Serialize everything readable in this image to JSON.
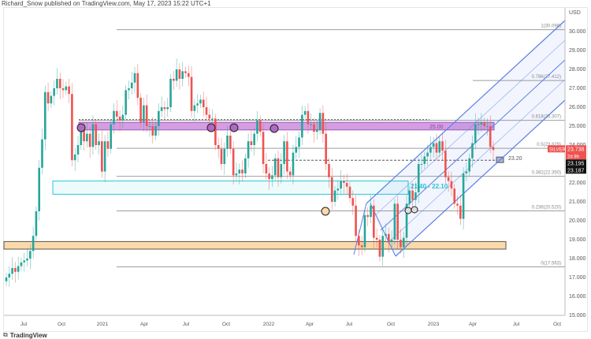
{
  "header": "Richard_Snow published on TradingView.com, May 17, 2023 15:22 UTC+1",
  "logo": "TradingView",
  "chart_data": {
    "type": "candlestick",
    "symbol": "SILVER",
    "currency": "USD",
    "ylim": [
      15,
      30.6
    ],
    "yticks": [
      "30.000",
      "29.000",
      "28.000",
      "27.000",
      "26.000",
      "25.000",
      "24.000",
      "22.000",
      "21.000",
      "20.000",
      "19.000",
      "18.000",
      "17.000",
      "16.000",
      "15.000"
    ],
    "ytick_values": [
      30,
      29,
      28,
      27,
      26,
      25,
      24,
      22,
      21,
      20,
      19,
      18,
      17,
      16,
      15
    ],
    "xticks": [
      "Jul",
      "Oct",
      "2021",
      "Apr",
      "Jul",
      "Oct",
      "2022",
      "Apr",
      "Jul",
      "Oct",
      "2023",
      "Apr",
      "Jul",
      "Oct"
    ],
    "interval": "weekly",
    "closes": [
      17.0,
      17.2,
      17.5,
      17.3,
      17.6,
      17.8,
      17.9,
      18.0,
      18.4,
      19.2,
      20.5,
      22.8,
      24.3,
      26.8,
      26.2,
      26.6,
      27.0,
      27.5,
      27.0,
      26.9,
      27.1,
      26.7,
      23.2,
      23.5,
      24.0,
      24.8,
      24.2,
      24.6,
      23.9,
      25.1,
      24.0,
      24.2,
      22.6,
      24.2,
      23.8,
      25.1,
      25.8,
      25.5,
      25.3,
      25.6,
      26.9,
      27.0,
      27.3,
      27.8,
      26.5,
      25.2,
      26.1,
      25.0,
      25.0,
      24.5,
      25.0,
      25.8,
      26.0,
      25.9,
      26.0,
      27.5,
      27.4,
      28.0,
      27.5,
      27.9,
      27.8,
      27.6,
      25.8,
      26.1,
      26.2,
      26.4,
      26.0,
      25.6,
      25.4,
      25.4,
      24.0,
      23.8,
      23.0,
      23.8,
      24.5,
      23.8,
      22.4,
      22.5,
      22.7,
      22.5,
      23.3,
      24.2,
      24.0,
      24.6,
      25.3,
      24.7,
      23.0,
      22.5,
      22.2,
      22.4,
      23.3,
      22.3,
      23.0,
      24.2,
      22.6,
      22.4,
      23.6,
      23.9,
      24.4,
      25.6,
      25.8,
      25.1,
      25.1,
      24.7,
      24.8,
      25.7,
      24.6,
      23.0,
      22.3,
      21.0,
      21.6,
      21.7,
      22.1,
      22.0,
      21.8,
      21.2,
      20.8,
      19.2,
      18.7,
      18.6,
      20.3,
      20.2,
      20.8,
      19.1,
      19.0,
      18.1,
      19.2,
      19.3,
      18.9,
      19.0,
      20.9,
      19.0,
      18.6,
      19.1,
      20.9,
      21.6,
      21.1,
      21.5,
      23.0,
      23.0,
      23.4,
      23.6,
      23.9,
      24.1,
      23.6,
      24.2,
      23.7,
      22.3,
      22.1,
      21.7,
      20.9,
      20.8,
      20.1,
      22.5,
      22.6,
      23.3,
      24.1,
      25.1,
      25.1,
      25.2,
      25.0,
      25.0,
      23.9,
      23.738
    ],
    "fib_levels": [
      {
        "ratio": "1",
        "price": 30.098,
        "label": "1(30.098)"
      },
      {
        "ratio": "0.786",
        "price": 27.412,
        "label": "0.786(27.412)"
      },
      {
        "ratio": "0.618",
        "price": 25.307,
        "label": "0.618(25.307)"
      },
      {
        "ratio": "0.5",
        "price": 23.829,
        "label": "0.5(23.829)"
      },
      {
        "ratio": "0.382",
        "price": 22.35,
        "label": "0.382(22.350)"
      },
      {
        "ratio": "0.236",
        "price": 20.52,
        "label": "0.236(20.520)"
      },
      {
        "ratio": "0",
        "price": 17.563,
        "label": "0(17.563)"
      }
    ],
    "zones": [
      {
        "name": "resistance",
        "low": 24.8,
        "high": 25.2,
        "label": "25.00",
        "color": "#c77dd8"
      },
      {
        "name": "support",
        "low": 21.4,
        "high": 22.1,
        "label": "21.40 - 22.10",
        "color": "#26c6da"
      },
      {
        "name": "base",
        "low": 18.5,
        "high": 18.9,
        "label": "",
        "color": "#fcd9a8"
      }
    ],
    "level_line": {
      "price": 23.2,
      "label": "23.20"
    },
    "price_tags": {
      "last": "23.738",
      "countdown": "2d 8h",
      "bid": "23.195",
      "ask": "23.187"
    },
    "colors": {
      "up": "#26a69a",
      "down": "#ef5350",
      "channel": "#5b7fe8"
    }
  }
}
